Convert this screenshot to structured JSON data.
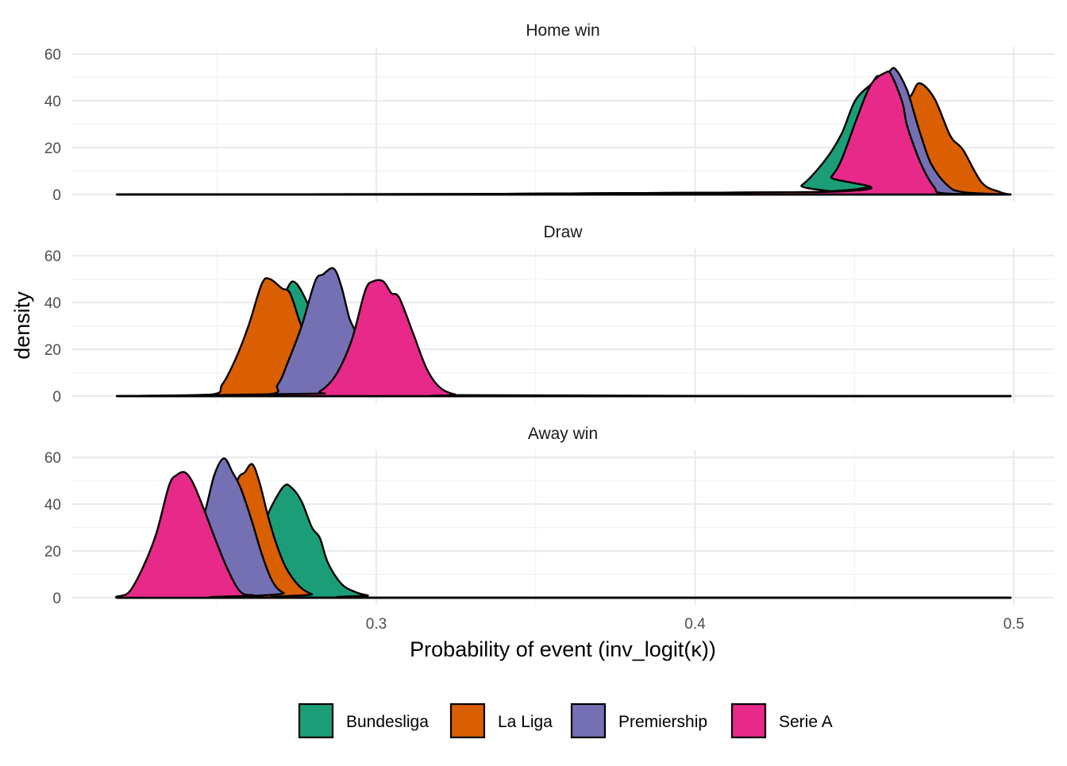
{
  "chart_data": {
    "type": "area",
    "subtype": "faceted density",
    "xlabel": "Probability of event (inv_logit(κ))",
    "ylabel": "density",
    "xlim": [
      0.2186,
      0.499
    ],
    "ylim": [
      0,
      60
    ],
    "x_ticks": [
      "0.3",
      "0.4",
      "0.5"
    ],
    "y_ticks": [
      "0",
      "20",
      "40",
      "60"
    ],
    "grid": true,
    "legend_position": "bottom",
    "colors": {
      "Bundesliga": "#1b9e77",
      "La Liga": "#d95f02",
      "Premiership": "#7570b3",
      "Serie A": "#e7298a"
    },
    "legend": [
      "Bundesliga",
      "La Liga",
      "Premiership",
      "Serie A"
    ],
    "panels": [
      {
        "title": "Home win",
        "series": [
          {
            "name": "Bundesliga",
            "x": [
              0.426,
              0.4335,
              0.441,
              0.446,
              0.4502,
              0.4552,
              0.4584,
              0.4659,
              0.4733,
              0.4808
            ],
            "y": [
              0.3,
              4,
              15,
              26,
              40,
              47,
              50,
              35,
              12,
              2
            ]
          },
          {
            "name": "La Liga",
            "x": [
              0.4385,
              0.4484,
              0.4559,
              0.4634,
              0.4676,
              0.4704,
              0.4751,
              0.4801,
              0.4841,
              0.49,
              0.4958,
              0.499
            ],
            "y": [
              1,
              10,
              25,
              38,
              42,
              47.5,
              41,
              25,
              19,
              5,
              1,
              0
            ]
          },
          {
            "name": "Premiership",
            "x": [
              0.436,
              0.446,
              0.4534,
              0.4572,
              0.4609,
              0.4629,
              0.4664,
              0.4691,
              0.4709,
              0.4741,
              0.4791,
              0.4841
            ],
            "y": [
              1,
              12,
              35,
              47,
              52.5,
              53.5,
              45,
              33,
              25,
              13,
              4,
              1
            ]
          },
          {
            "name": "Serie A",
            "x": [
              0.4377,
              0.4427,
              0.446,
              0.4509,
              0.4552,
              0.4597,
              0.4616,
              0.4651,
              0.4666,
              0.4709,
              0.4751,
              0.4783
            ],
            "y": [
              1,
              7.5,
              15,
              33,
              47,
              52,
              51,
              39,
              29,
              13,
              3,
              0.5
            ]
          }
        ]
      },
      {
        "title": "Draw",
        "series": [
          {
            "name": "Bundesliga",
            "x": [
              0.2517,
              0.2616,
              0.2679,
              0.2721,
              0.2746,
              0.2783,
              0.2828,
              0.2878,
              0.2928,
              0.2978
            ],
            "y": [
              1,
              10,
              30,
              46,
              48.5,
              40,
              25,
              10,
              2,
              0
            ]
          },
          {
            "name": "La Liga",
            "x": [
              0.2474,
              0.2517,
              0.2559,
              0.2599,
              0.2641,
              0.2666,
              0.2704,
              0.2729,
              0.2758,
              0.2778,
              0.2816,
              0.2853,
              0.289
            ],
            "y": [
              0.5,
              5,
              16,
              30,
              48,
              50,
              46,
              44,
              32.5,
              25,
              10,
              2,
              0
            ]
          },
          {
            "name": "Premiership",
            "x": [
              0.2641,
              0.2691,
              0.2724,
              0.2766,
              0.2808,
              0.2833,
              0.2866,
              0.289,
              0.2915,
              0.2935,
              0.2965,
              0.3002,
              0.304
            ],
            "y": [
              0.5,
              5,
              15,
              30,
              49,
              52,
              54.5,
              47,
              33.5,
              27,
              12,
              3,
              0.5
            ]
          },
          {
            "name": "Serie A",
            "x": [
              0.2783,
              0.2823,
              0.2873,
              0.2923,
              0.2965,
              0.299,
              0.3022,
              0.3047,
              0.3072,
              0.3115,
              0.3157,
              0.3197,
              0.3247,
              0.3314
            ],
            "y": [
              1,
              2,
              9,
              24,
              45,
              49,
              49,
              44,
              42,
              27,
              12,
              4,
              0.7,
              0
            ]
          }
        ]
      },
      {
        "title": "Away win",
        "series": [
          {
            "name": "Bundesliga",
            "x": [
              0.2467,
              0.2542,
              0.2604,
              0.2641,
              0.2666,
              0.2709,
              0.2734,
              0.2766,
              0.2798,
              0.2823,
              0.2848,
              0.289,
              0.2933,
              0.2973,
              0.304
            ],
            "y": [
              0.5,
              4,
              15,
              28,
              37.5,
              47.5,
              47,
              41,
              30,
              25.5,
              15,
              6,
              2.5,
              1,
              0
            ]
          },
          {
            "name": "La Liga",
            "x": [
              0.2392,
              0.2455,
              0.2504,
              0.2542,
              0.2567,
              0.2587,
              0.2611,
              0.2634,
              0.2659,
              0.2684,
              0.2716,
              0.2758,
              0.2798,
              0.2841
            ],
            "y": [
              0.5,
              5,
              20,
              40,
              51,
              53.5,
              57,
              49,
              35.5,
              24,
              13,
              5,
              1.5,
              0
            ]
          },
          {
            "name": "Premiership",
            "x": [
              0.2318,
              0.2367,
              0.2417,
              0.2462,
              0.2492,
              0.2522,
              0.2549,
              0.2574,
              0.2609,
              0.2641,
              0.2674,
              0.2709,
              0.2766
            ],
            "y": [
              0.5,
              4,
              18,
              36.5,
              52.5,
              59.5,
              53.5,
              47,
              33,
              18.5,
              7,
              2,
              0
            ]
          },
          {
            "name": "Serie A",
            "x": [
              0.2186,
              0.2225,
              0.2268,
              0.231,
              0.235,
              0.2375,
              0.24,
              0.2425,
              0.246,
              0.2492,
              0.2534,
              0.2574,
              0.2616,
              0.2666
            ],
            "y": [
              0.5,
              2.5,
              13,
              27.5,
              48,
              52.5,
              53.5,
              49,
              37.5,
              26,
              12,
              2.5,
              1,
              0
            ]
          }
        ]
      }
    ]
  }
}
